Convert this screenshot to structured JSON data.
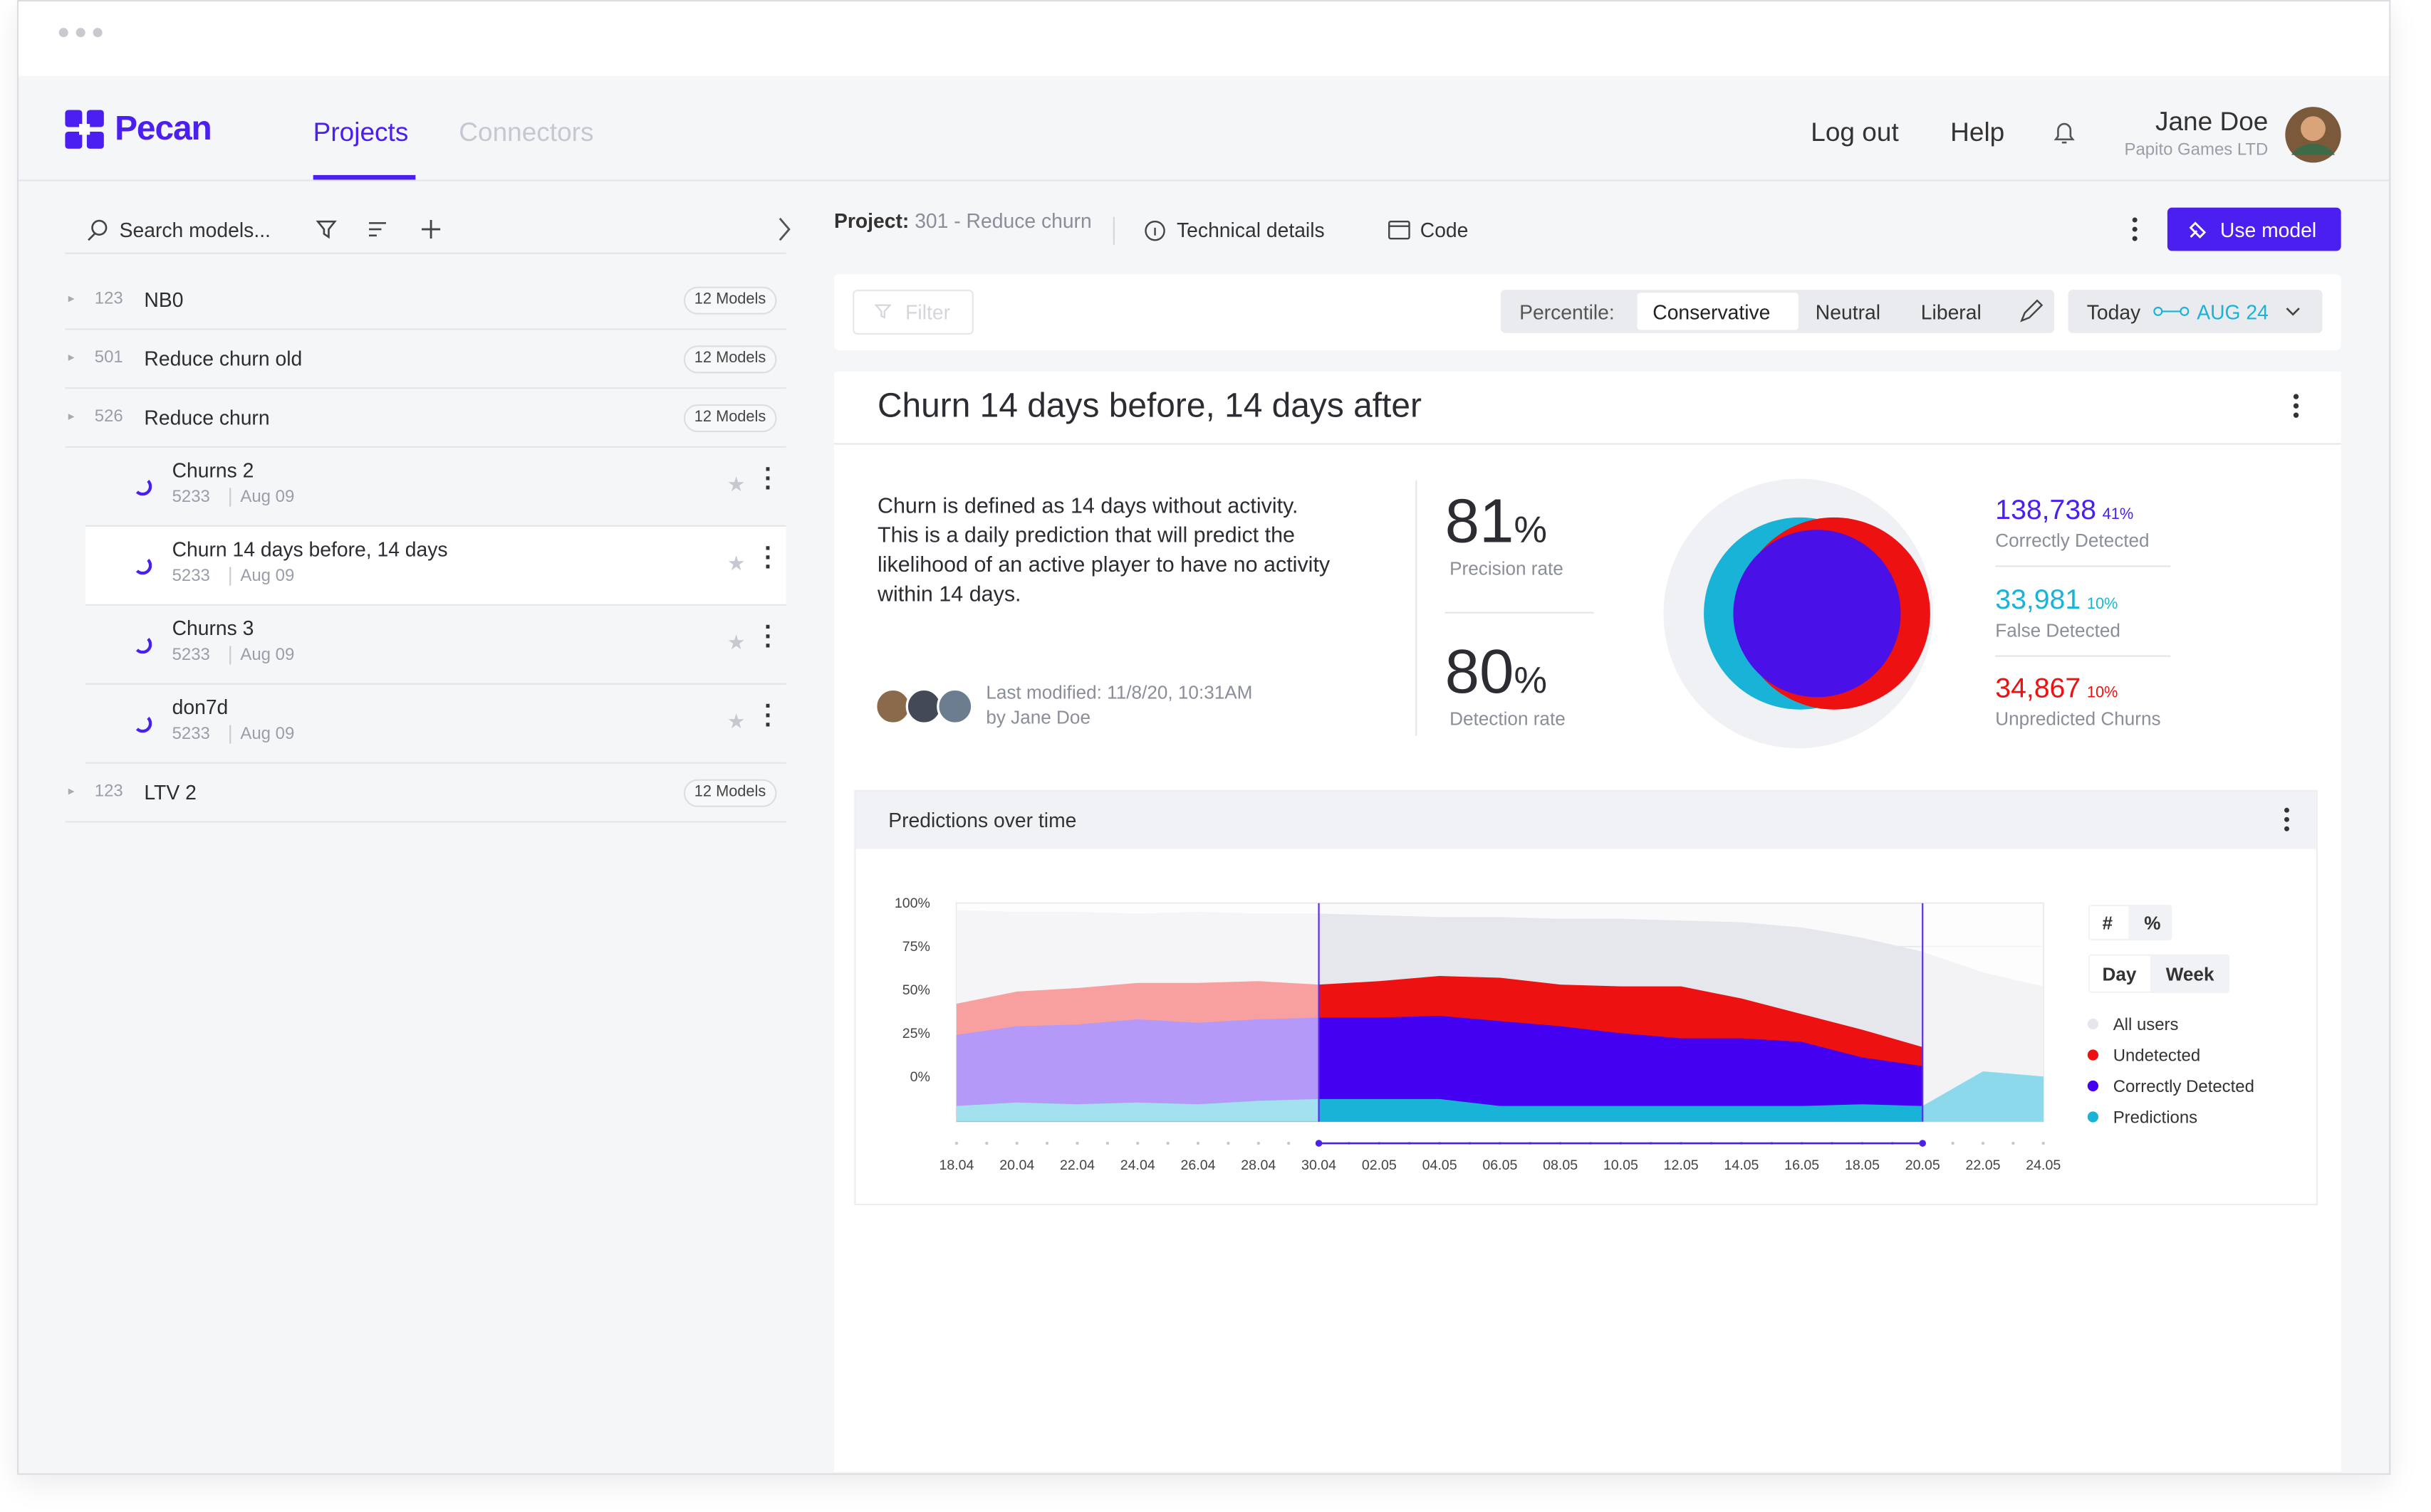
{
  "nav": {
    "brand": "Pecan",
    "tabs": [
      "Projects",
      "Connectors"
    ],
    "links": [
      "Log out",
      "Help"
    ],
    "user_name": "Jane Doe",
    "company": "Papito Games LTD"
  },
  "sidebar": {
    "search": "Search models...",
    "projects": [
      {
        "id": "123",
        "name": "NB0",
        "count": "12 Models"
      },
      {
        "id": "501",
        "name": "Reduce churn old",
        "count": "12 Models"
      },
      {
        "id": "526",
        "name": "Reduce churn",
        "count": "12 Models",
        "models": [
          {
            "name": "Churns 2",
            "id": "5233",
            "date": "Aug 09"
          },
          {
            "name": "Churn 14 days before, 14 days",
            "id": "5233",
            "date": "Aug 09"
          },
          {
            "name": "Churns 3",
            "id": "5233",
            "date": "Aug 09"
          },
          {
            "name": "don7d",
            "id": "5233",
            "date": "Aug 09"
          }
        ]
      },
      {
        "id": "123",
        "name": "LTV 2",
        "count": "12 Models"
      }
    ]
  },
  "toolbar": {
    "project_label": "Project:",
    "project": "301 - Reduce churn",
    "technical_details": "Technical details",
    "code": "Code",
    "use_model": "Use model"
  },
  "filters": {
    "filter": "Filter",
    "percentile_label": "Percentile:",
    "percentiles": [
      "Conservative",
      "Neutral",
      "Liberal"
    ],
    "date_start": "Today",
    "date_end": "AUG 24"
  },
  "model": {
    "title": "Churn 14 days before, 14 days after",
    "description": "Churn is defined as 14 days without activity. This is a daily prediction that will predict the likelihood of an active player to have no activity within 14 days.",
    "modified": "Last modified: 11/8/20, 10:31AM",
    "modified_by": "by Jane Doe",
    "rates": [
      {
        "value": "81",
        "unit": "%",
        "label": "Precision rate"
      },
      {
        "value": "80",
        "unit": "%",
        "label": "Detection rate"
      }
    ],
    "results": [
      {
        "value": "138,738",
        "share": "41%",
        "label": "Correctly Detected",
        "color": "#4a1ff0"
      },
      {
        "value": "33,981",
        "share": "10%",
        "label": "False Detected",
        "color": "#1ab3d8"
      },
      {
        "value": "34,867",
        "share": "10%",
        "label": "Unpredicted Churns",
        "color": "#ee1111"
      }
    ]
  },
  "chart_data": {
    "type": "area",
    "title": "Predictions over time",
    "x": [
      "18.04",
      "20.04",
      "22.04",
      "24.04",
      "26.04",
      "28.04",
      "30.04",
      "02.05",
      "04.05",
      "06.05",
      "08.05",
      "10.05",
      "12.05",
      "14.05",
      "16.05",
      "18.05",
      "20.05",
      "22.05",
      "24.05"
    ],
    "ylim": [
      -26,
      100
    ],
    "yticks": [
      {
        "value": 100,
        "label": "100%"
      },
      {
        "value": 75,
        "label": "75%"
      },
      {
        "value": 50,
        "label": "50%"
      },
      {
        "value": 25,
        "label": "25%"
      },
      {
        "value": 0,
        "label": "0%"
      }
    ],
    "grid": true,
    "series": [
      {
        "name": "All users",
        "color": "#e6e7ec",
        "values": [
          96,
          95,
          95,
          94,
          95,
          94,
          94,
          93,
          92,
          92,
          91,
          91,
          90,
          89,
          86,
          80,
          72,
          60,
          52
        ]
      },
      {
        "name": "Undetected",
        "color": "#ee1111",
        "values": [
          42,
          49,
          51,
          54,
          54,
          55,
          53,
          55,
          58,
          57,
          53,
          52,
          52,
          45,
          36,
          27,
          17,
          null,
          null
        ]
      },
      {
        "name": "Correctly Detected",
        "color": "#4400f0",
        "values": [
          24,
          29,
          30,
          33,
          31,
          33,
          34,
          34,
          35,
          32,
          29,
          25,
          22,
          22,
          20,
          11,
          6,
          null,
          null
        ]
      },
      {
        "name": "Predictions",
        "color": "#1ab3d8",
        "values": [
          -17,
          -15,
          -16,
          -15,
          -16,
          -14,
          -13,
          -13,
          -13,
          -17,
          -17,
          -17,
          -17,
          -17,
          -17,
          -16,
          -17,
          3,
          0
        ]
      }
    ]
  },
  "chart_controls": {
    "units": [
      "#",
      "%"
    ],
    "periods": [
      "Day",
      "Week"
    ]
  }
}
